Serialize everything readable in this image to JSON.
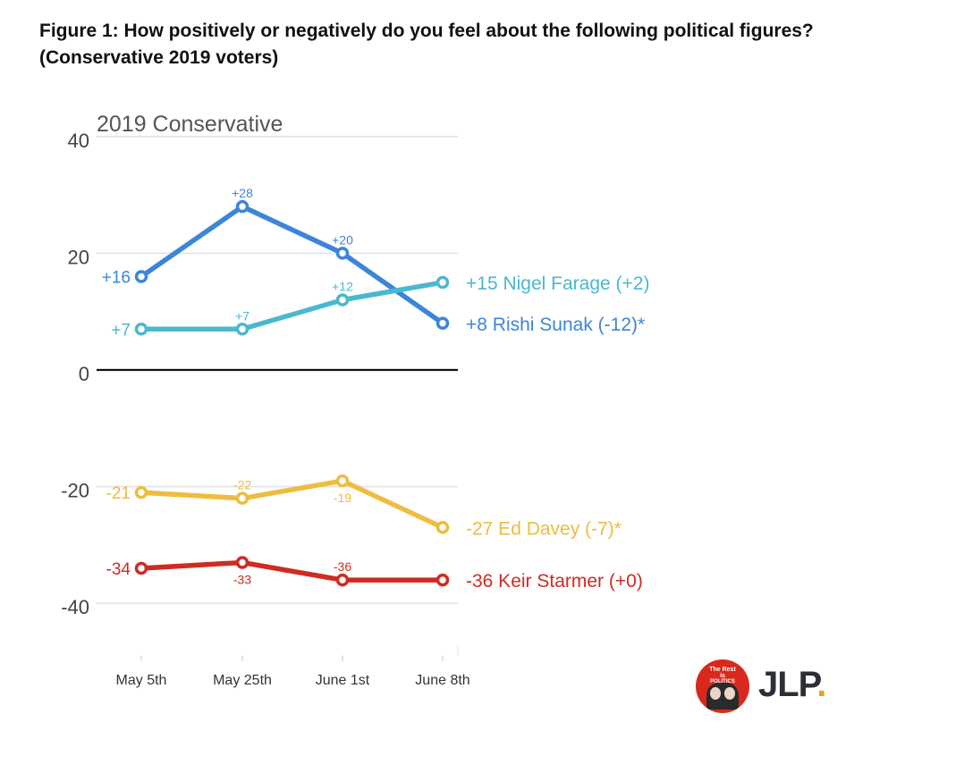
{
  "figure": {
    "title_line1": "Figure 1: How positively or negatively do you feel about the following political figures?",
    "title_line2": "(Conservative 2019 voters)"
  },
  "chart_data": {
    "type": "line",
    "title": "2019 Conservative",
    "xlabel": "",
    "ylabel": "",
    "categories": [
      "May 5th",
      "May 25th",
      "June 1st",
      "June 8th"
    ],
    "ylim": [
      -50,
      40
    ],
    "yticks": [
      40,
      20,
      0,
      -20,
      -40
    ],
    "ytick_labels": [
      "40",
      "20",
      "0",
      "-20",
      "-40"
    ],
    "grid": true,
    "series": [
      {
        "name": "Rishi Sunak",
        "color": "#3d85d8",
        "values": [
          16,
          28,
          20,
          8
        ],
        "point_labels": [
          "+16",
          "+28",
          "+20",
          "+8"
        ],
        "label_styles": [
          "left",
          "above",
          "above",
          "none"
        ],
        "end_label": "+8 Rishi Sunak (-12)*"
      },
      {
        "name": "Nigel Farage",
        "color": "#4ab8cf",
        "values": [
          7,
          7,
          12,
          15
        ],
        "point_labels": [
          "+7",
          "+7",
          "+12",
          "+15"
        ],
        "label_styles": [
          "left",
          "above",
          "above",
          "none"
        ],
        "end_label": "+15 Nigel Farage (+2)"
      },
      {
        "name": "Ed Davey",
        "color": "#eebc3f",
        "values": [
          -21,
          -22,
          -19,
          -27
        ],
        "point_labels": [
          "-21",
          "-22",
          "-19",
          "-27"
        ],
        "label_styles": [
          "left",
          "above",
          "below",
          "none"
        ],
        "end_label": "-27 Ed Davey (-7)*"
      },
      {
        "name": "Keir Starmer",
        "color": "#cf2b22",
        "values": [
          -34,
          -33,
          -36,
          -36
        ],
        "point_labels": [
          "-34",
          "-33",
          "-36",
          "-36"
        ],
        "label_styles": [
          "left",
          "below",
          "above",
          "none"
        ],
        "end_label": "-36 Keir Starmer (+0)"
      }
    ]
  },
  "logo": {
    "badge_line1": "The Rest",
    "badge_line2": "is",
    "badge_line3": "POLITICS",
    "wordmark": "JLP",
    "wordmark_dot": "."
  }
}
